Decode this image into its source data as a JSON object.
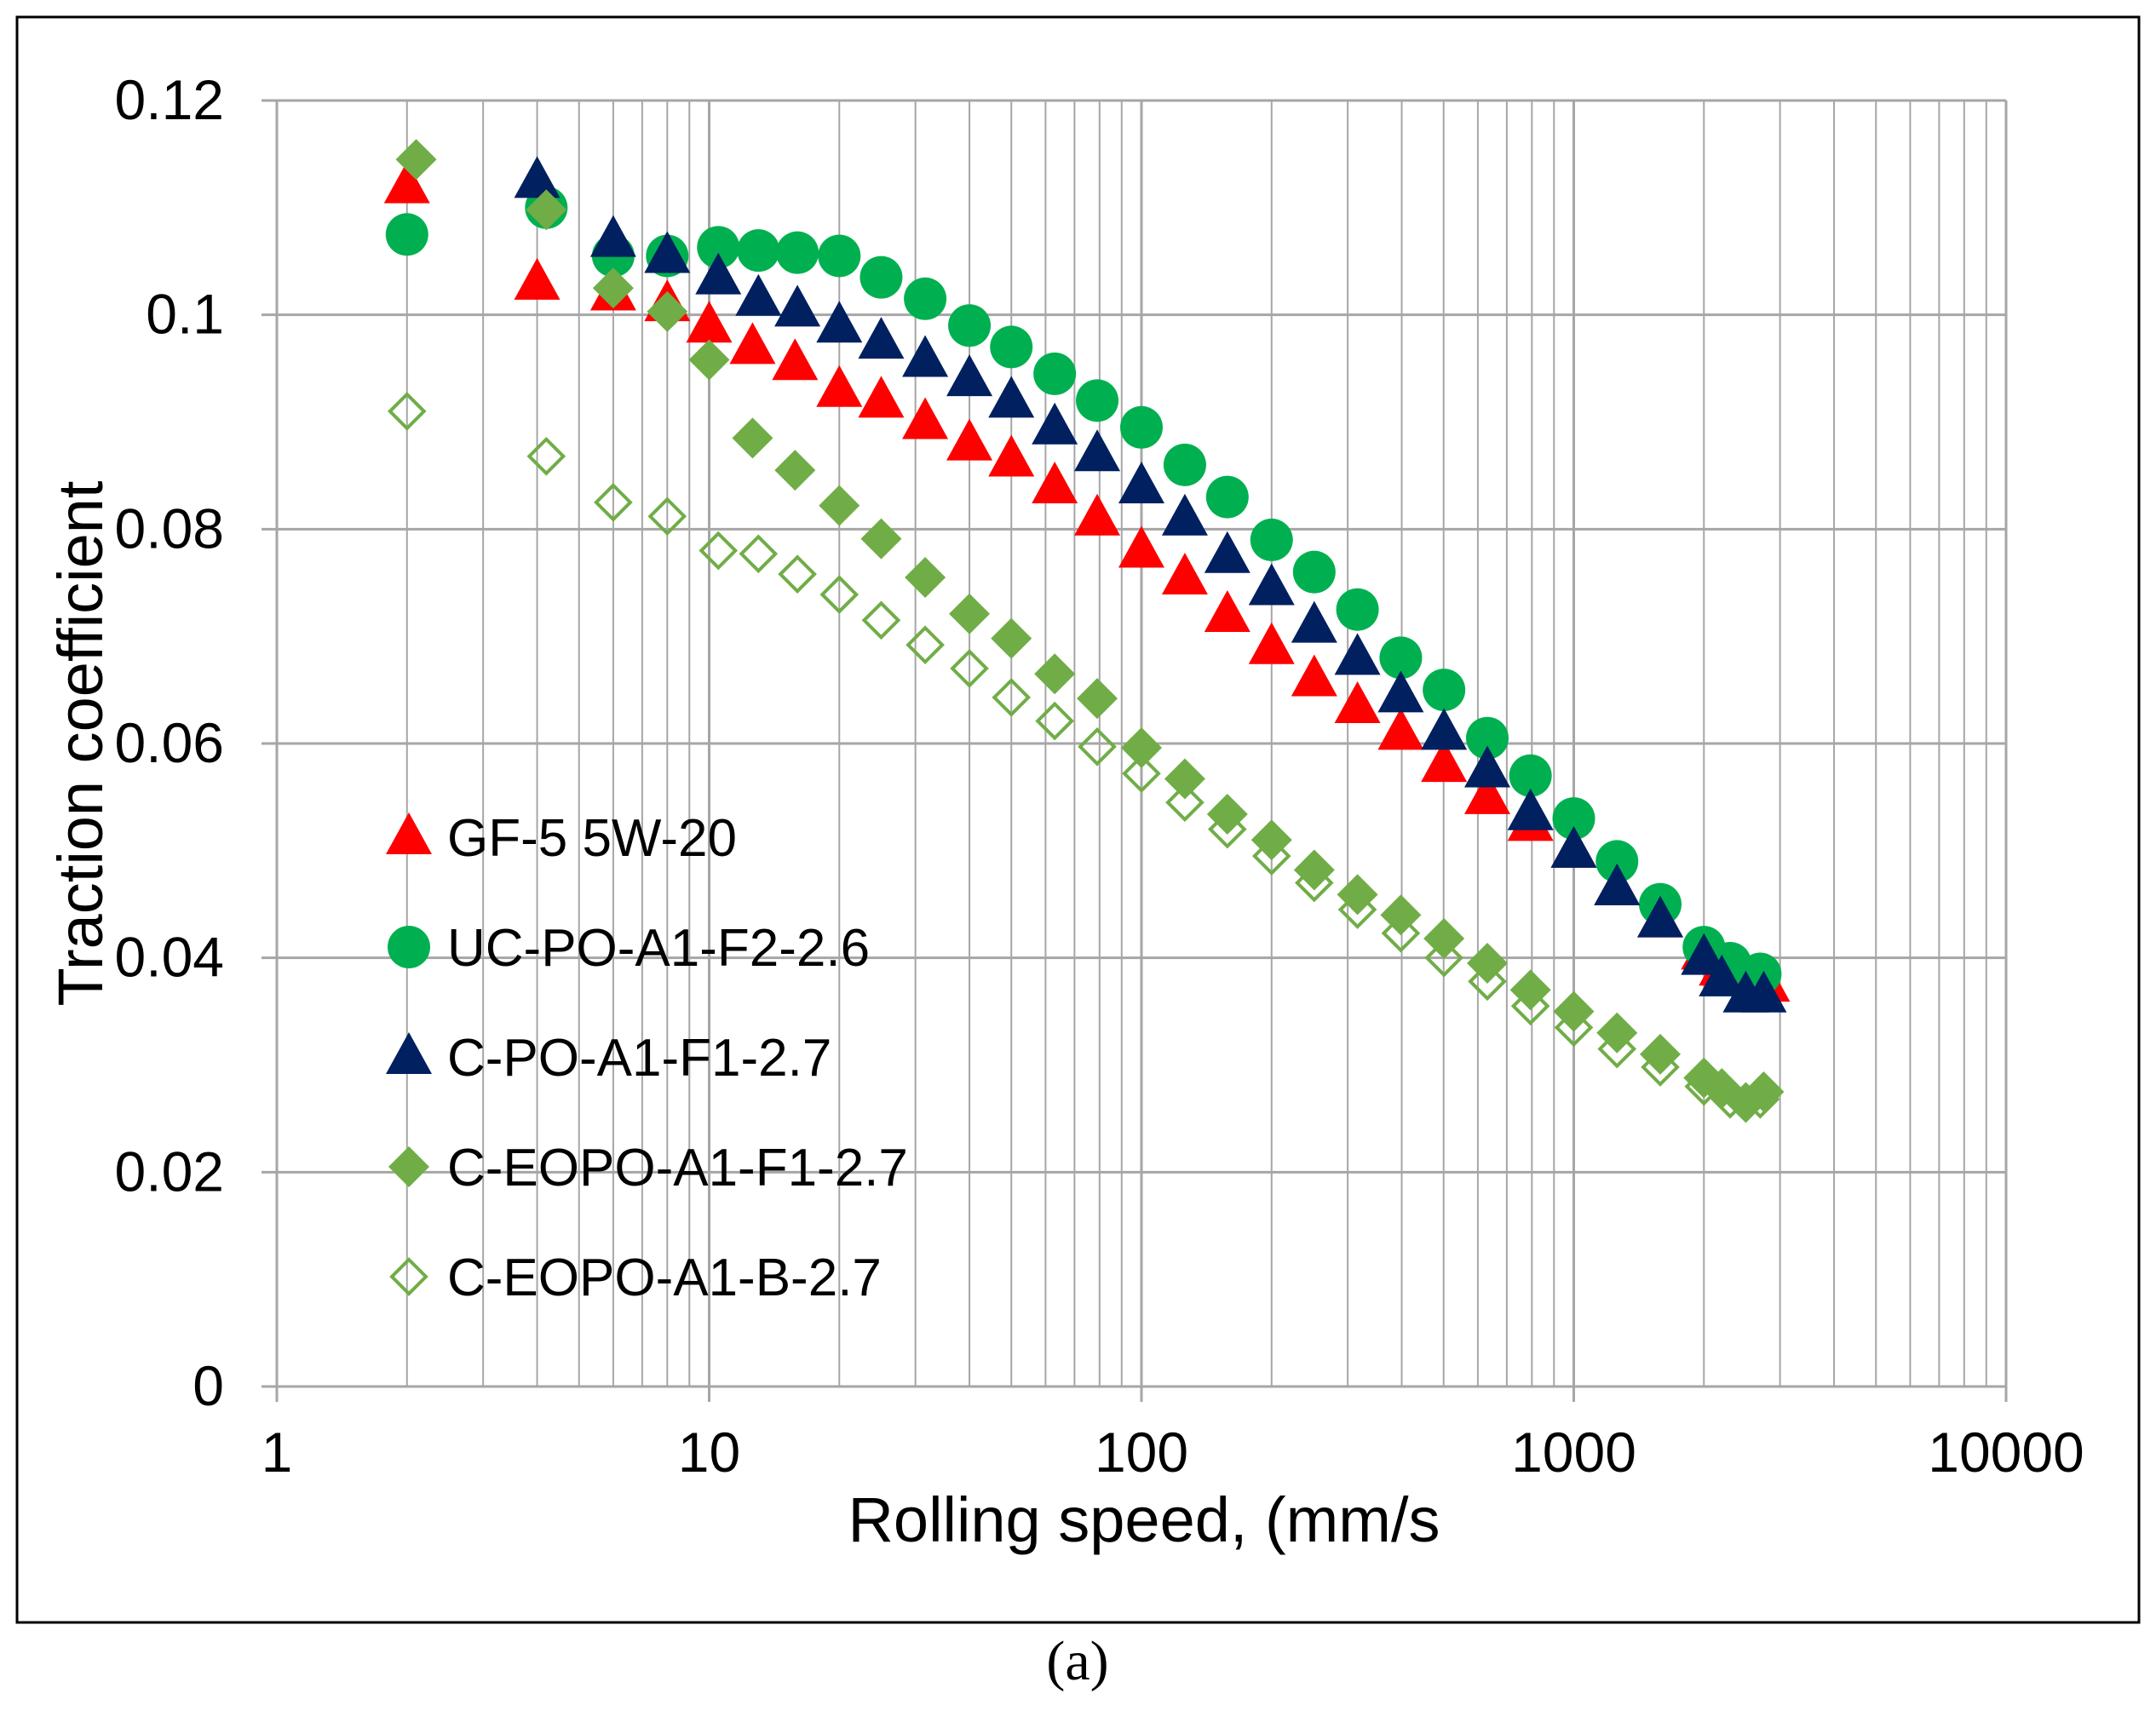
{
  "chart_data": {
    "type": "scatter",
    "title": "",
    "caption": "(a)",
    "xlabel": "Rolling speed,  (mm/s",
    "ylabel": "Traction coefficient",
    "xscale": "log",
    "xlim": [
      1,
      10000
    ],
    "ylim": [
      0,
      0.12
    ],
    "grid": true,
    "legend_position": "lower-left",
    "x_ticks": [
      "1",
      "10",
      "100",
      "1000",
      "10000"
    ],
    "y_ticks": [
      "0",
      "0.02",
      "0.04",
      "0.06",
      "0.08",
      "0.1",
      "0.12"
    ],
    "x_tick_values": [
      1,
      10,
      100,
      1000,
      10000
    ],
    "y_tick_values": [
      0,
      0.02,
      0.04,
      0.06,
      0.08,
      0.1,
      0.12
    ],
    "series": [
      {
        "name": "GF-5 5W-20",
        "marker": "triangle",
        "color": "#ff0000",
        "filled": true,
        "x": [
          2,
          4,
          6,
          8,
          10,
          12.6,
          15.8,
          20,
          25,
          31.6,
          40,
          50,
          63,
          79,
          100,
          126,
          158,
          200,
          251,
          316,
          398,
          501,
          631,
          794,
          1000,
          1259,
          1585,
          2000,
          2200,
          2500,
          2800
        ],
        "y": [
          0.112,
          0.103,
          0.102,
          0.101,
          0.099,
          0.097,
          0.0955,
          0.093,
          0.092,
          0.09,
          0.088,
          0.0865,
          0.084,
          0.081,
          0.078,
          0.0755,
          0.072,
          0.069,
          0.066,
          0.0635,
          0.061,
          0.058,
          0.055,
          0.0525,
          0.05,
          0.0465,
          0.0435,
          0.0405,
          0.039,
          0.0385,
          0.0375
        ]
      },
      {
        "name": "UC-PO-A1-F2-2.6",
        "marker": "circle",
        "color": "#00b050",
        "filled": true,
        "x": [
          2,
          4.2,
          6,
          8,
          10.5,
          13,
          16,
          20,
          25,
          31.6,
          40,
          50,
          63,
          79,
          100,
          126,
          158,
          200,
          251,
          316,
          398,
          501,
          631,
          794,
          1000,
          1259,
          1585,
          2000,
          2300,
          2700
        ],
        "y": [
          0.1075,
          0.11,
          0.1055,
          0.1055,
          0.1063,
          0.106,
          0.1058,
          0.1055,
          0.1035,
          0.1015,
          0.099,
          0.097,
          0.0945,
          0.092,
          0.0895,
          0.086,
          0.083,
          0.079,
          0.076,
          0.0725,
          0.068,
          0.065,
          0.0605,
          0.057,
          0.053,
          0.049,
          0.045,
          0.041,
          0.0395,
          0.0385
        ]
      },
      {
        "name": "C-PO-A1-F1-2.7",
        "marker": "triangle",
        "color": "#002060",
        "filled": true,
        "x": [
          4,
          6,
          8,
          10.5,
          13,
          16,
          20,
          25,
          31.6,
          40,
          50,
          63,
          79,
          100,
          126,
          158,
          200,
          251,
          316,
          398,
          501,
          631,
          794,
          1000,
          1259,
          1585,
          2000,
          2200,
          2500,
          2750
        ],
        "y": [
          0.1125,
          0.107,
          0.1055,
          0.1035,
          0.1015,
          0.1005,
          0.099,
          0.0975,
          0.0958,
          0.094,
          0.092,
          0.0895,
          0.087,
          0.084,
          0.081,
          0.0775,
          0.0745,
          0.071,
          0.068,
          0.0645,
          0.061,
          0.0575,
          0.0535,
          0.05,
          0.0465,
          0.0435,
          0.04,
          0.038,
          0.0365,
          0.0365
        ]
      },
      {
        "name": "C-EOPO-A1-F1-2.7",
        "marker": "diamond",
        "color": "#70ad47",
        "filled": true,
        "x": [
          2.1,
          4.2,
          6,
          8,
          10,
          12.6,
          15.8,
          20,
          25,
          31.6,
          40,
          50,
          63,
          79,
          100,
          126,
          158,
          200,
          251,
          316,
          398,
          501,
          631,
          794,
          1000,
          1259,
          1585,
          2000,
          2200,
          2500,
          2750
        ],
        "y": [
          0.1145,
          0.1098,
          0.1025,
          0.1003,
          0.0958,
          0.0885,
          0.0855,
          0.0822,
          0.0791,
          0.0755,
          0.0721,
          0.0698,
          0.0665,
          0.0642,
          0.0596,
          0.0567,
          0.0534,
          0.051,
          0.0482,
          0.0459,
          0.044,
          0.0418,
          0.0395,
          0.037,
          0.035,
          0.033,
          0.031,
          0.0288,
          0.0278,
          0.0265,
          0.0275
        ]
      },
      {
        "name": "C-EOPO-A1-B-2.7",
        "marker": "diamond",
        "color": "#70ad47",
        "filled": false,
        "x": [
          2,
          4.2,
          6,
          8,
          10.5,
          13,
          16,
          20,
          25,
          31.6,
          40,
          50,
          63,
          79,
          100,
          126,
          158,
          200,
          251,
          316,
          398,
          501,
          631,
          794,
          1000,
          1259,
          1585,
          2000,
          2300,
          2700
        ],
        "y": [
          0.091,
          0.0868,
          0.0825,
          0.0812,
          0.078,
          0.0777,
          0.0758,
          0.0739,
          0.0715,
          0.0692,
          0.067,
          0.0643,
          0.0621,
          0.0597,
          0.0572,
          0.0545,
          0.052,
          0.0495,
          0.047,
          0.0445,
          0.0423,
          0.04,
          0.0378,
          0.0355,
          0.0335,
          0.0315,
          0.0298,
          0.028,
          0.0268,
          0.0268
        ]
      }
    ]
  }
}
